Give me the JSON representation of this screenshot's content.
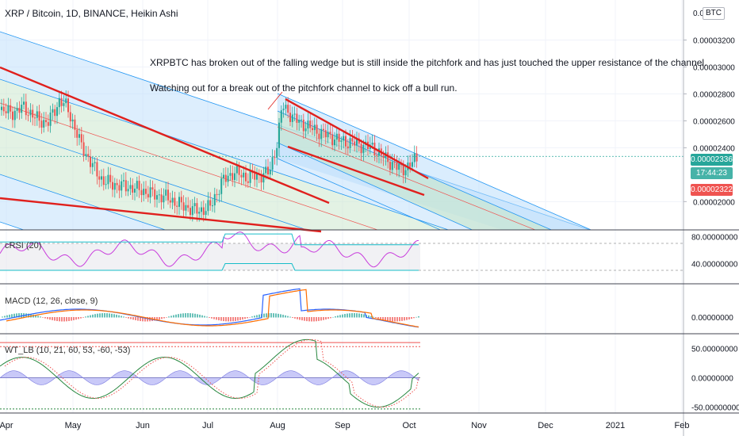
{
  "header": {
    "title": "XRP / Bitcoin, 1D, BINANCE, Heikin Ashi",
    "currency_button": "BTC"
  },
  "annotations": {
    "line1": "XRPBTC has broken out of the falling wedge but is still inside the pitchfork and has just touched the upper resistance of the channel.",
    "line2": "Watching out for a  break out of the pitchfork channel to kick off a bull run."
  },
  "price_tags": {
    "last": "0.00002336",
    "countdown": "17:44:23",
    "low": "0.00002322"
  },
  "colors": {
    "bull": "#26a69a",
    "bear": "#ef5350",
    "trendline": "#e0201d",
    "channel": "#2196f3",
    "crsi": "#c83cdc",
    "band": "#17bdc9",
    "macd": "#2962ff",
    "signal": "#ff6d00",
    "wt": "#27873f"
  },
  "chart_data": [
    {
      "type": "candlestick",
      "name": "price",
      "yticks": [
        "0.00003200",
        "0.00003000",
        "0.00002800",
        "0.00002600",
        "0.00002400",
        "0.00002000"
      ],
      "top_tick_partial": "0.00",
      "ylim": [
        1.79e-05,
        3.45e-05
      ],
      "x_ticks": [
        "Apr",
        "May",
        "Jun",
        "Jul",
        "Aug",
        "Sep",
        "Oct",
        "Nov",
        "Dec",
        "2021",
        "Feb"
      ],
      "last_price": 2.336e-05
    },
    {
      "type": "line",
      "name": "cRSI",
      "label": "cRSI (20)",
      "yticks": [
        "80.00000000",
        "40.00000000"
      ],
      "ylim": [
        10,
        90
      ]
    },
    {
      "type": "line",
      "name": "MACD",
      "label": "MACD (12, 26, close, 9)",
      "yticks": [
        "0.00000000"
      ]
    },
    {
      "type": "line",
      "name": "WT_LB",
      "label": "WT_LB (10, 21, 60, 53, -60, -53)",
      "yticks": [
        "50.00000000",
        "0.00000000",
        "-50.00000000"
      ],
      "ylim": [
        -60,
        75
      ]
    }
  ]
}
